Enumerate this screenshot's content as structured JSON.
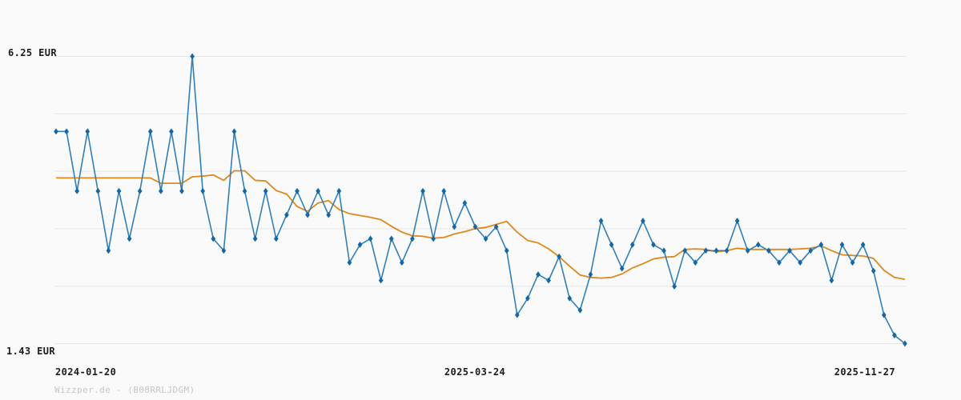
{
  "chart_data": {
    "type": "line",
    "title": "",
    "currency": "EUR",
    "y_axis": {
      "max": 6.25,
      "min": 1.43,
      "max_label": "6.25 EUR",
      "min_label": "1.43 EUR",
      "gridline_count": 6,
      "grid": "horizontal-only"
    },
    "x_axis": {
      "labels": [
        "2024-01-20",
        "2025-03-24",
        "2025-11-27"
      ],
      "label_positions": [
        "left",
        "center",
        "right"
      ]
    },
    "legend_position": "none",
    "series": [
      {
        "name": "price",
        "color": "#2e80c0",
        "marker_color": "#1268a8",
        "marker": "diamond",
        "values": [
          4.99,
          4.99,
          3.99,
          4.99,
          3.99,
          2.99,
          3.99,
          3.19,
          3.99,
          4.99,
          3.99,
          4.99,
          3.99,
          6.25,
          3.99,
          3.19,
          2.99,
          4.99,
          3.99,
          3.19,
          3.99,
          3.19,
          3.59,
          3.99,
          3.59,
          3.99,
          3.59,
          3.99,
          2.79,
          3.09,
          3.19,
          2.49,
          3.19,
          2.79,
          3.19,
          3.99,
          3.19,
          3.99,
          3.39,
          3.79,
          3.39,
          3.19,
          3.39,
          2.99,
          1.91,
          2.19,
          2.59,
          2.49,
          2.89,
          2.19,
          1.99,
          2.59,
          3.49,
          3.09,
          2.69,
          3.09,
          3.49,
          3.09,
          2.99,
          2.39,
          2.99,
          2.79,
          2.99,
          2.99,
          2.99,
          3.49,
          2.99,
          3.09,
          2.99,
          2.79,
          2.99,
          2.79,
          2.99,
          3.09,
          2.49,
          3.09,
          2.79,
          3.09,
          2.65,
          1.91,
          1.57,
          1.43
        ]
      },
      {
        "name": "average",
        "color": "#e08919",
        "marker": "none",
        "values": [
          4.21,
          4.21,
          4.21,
          4.21,
          4.21,
          4.21,
          4.21,
          4.21,
          4.21,
          4.21,
          4.12,
          4.12,
          4.12,
          4.23,
          4.24,
          4.26,
          4.17,
          4.33,
          4.33,
          4.17,
          4.16,
          4.0,
          3.94,
          3.73,
          3.65,
          3.79,
          3.83,
          3.68,
          3.61,
          3.58,
          3.55,
          3.51,
          3.4,
          3.3,
          3.24,
          3.23,
          3.2,
          3.21,
          3.27,
          3.31,
          3.36,
          3.38,
          3.43,
          3.48,
          3.3,
          3.16,
          3.12,
          3.02,
          2.89,
          2.73,
          2.58,
          2.54,
          2.53,
          2.54,
          2.6,
          2.7,
          2.77,
          2.85,
          2.88,
          2.89,
          3.01,
          3.02,
          3.01,
          2.97,
          2.99,
          3.03,
          3.01,
          3.01,
          3.01,
          3.01,
          3.01,
          3.02,
          3.03,
          3.07,
          2.99,
          2.92,
          2.91,
          2.9,
          2.86,
          2.66,
          2.54,
          2.51
        ]
      }
    ],
    "watermark": "Wizzper.de - (B08RRLJDGM)"
  },
  "colors": {
    "background": "#fafafa",
    "gridline": "#e6e6e6",
    "label": "#1c1c1c",
    "watermark": "#c6c6c6"
  }
}
